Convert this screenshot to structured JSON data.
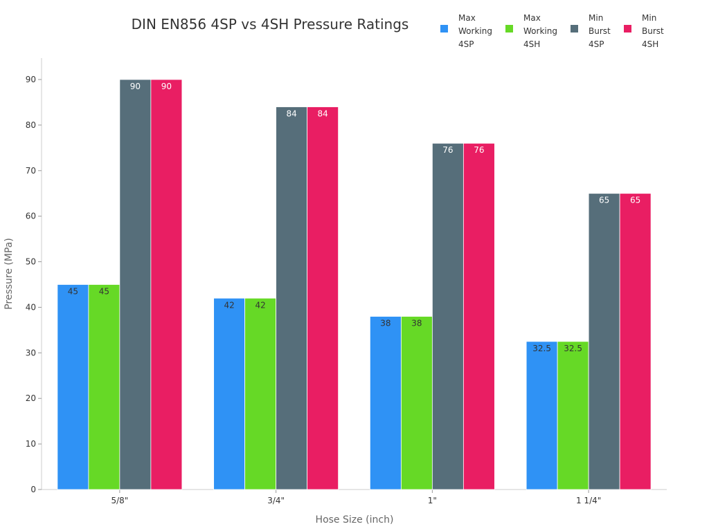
{
  "chart_data": {
    "type": "bar",
    "title": "DIN EN856 4SP vs 4SH Pressure Ratings",
    "xlabel": "Hose Size (inch)",
    "ylabel": "Pressure (MPa)",
    "categories": [
      "5/8\"",
      "3/4\"",
      "1\"",
      "1 1/4\""
    ],
    "ylim": [
      0,
      95
    ],
    "yticks": [
      0,
      10,
      20,
      30,
      40,
      50,
      60,
      70,
      80,
      90
    ],
    "grid": false,
    "legend_placement": "top-right",
    "series": [
      {
        "name": [
          "Max",
          "Working",
          "4SP"
        ],
        "color": "#2f92f5",
        "label_color": "#333333",
        "values": [
          45,
          42,
          38,
          32.5
        ]
      },
      {
        "name": [
          "Max",
          "Working",
          "4SH"
        ],
        "color": "#66d926",
        "label_color": "#333333",
        "values": [
          45,
          42,
          38,
          32.5
        ]
      },
      {
        "name": [
          "Min",
          "Burst",
          "4SP"
        ],
        "color": "#566e7a",
        "label_color": "#ffffff",
        "values": [
          90,
          84,
          76,
          65
        ]
      },
      {
        "name": [
          "Min",
          "Burst",
          "4SH"
        ],
        "color": "#e91e63",
        "label_color": "#ffffff",
        "values": [
          90,
          84,
          76,
          65
        ]
      }
    ]
  }
}
